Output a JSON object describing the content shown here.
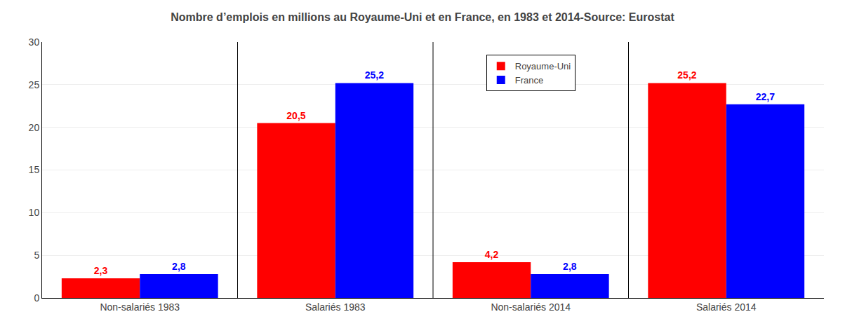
{
  "chart_data": {
    "type": "bar",
    "title": "Nombre d’emplois en millions au Royaume-Uni et en France, en 1983 et 2014-Source: Eurostat",
    "categories": [
      "Non-salariés 1983",
      "Salariés 1983",
      "Non-salariés 2014",
      "Salariés 2014"
    ],
    "series": [
      {
        "name": "Royaume-Uni",
        "color": "#ff0000",
        "values": [
          2.3,
          20.5,
          4.2,
          25.2
        ],
        "value_labels": [
          "2,3",
          "20,5",
          "4,2",
          "25,2"
        ]
      },
      {
        "name": "France",
        "color": "#0000ff",
        "values": [
          2.8,
          25.2,
          2.8,
          22.7
        ],
        "value_labels": [
          "2,8",
          "25,2",
          "2,8",
          "22,7"
        ]
      }
    ],
    "ylim": [
      0,
      30
    ],
    "yticks": [
      0,
      5,
      10,
      15,
      20,
      25,
      30
    ],
    "grid": true,
    "legend": "upper center",
    "data_labels": true
  }
}
